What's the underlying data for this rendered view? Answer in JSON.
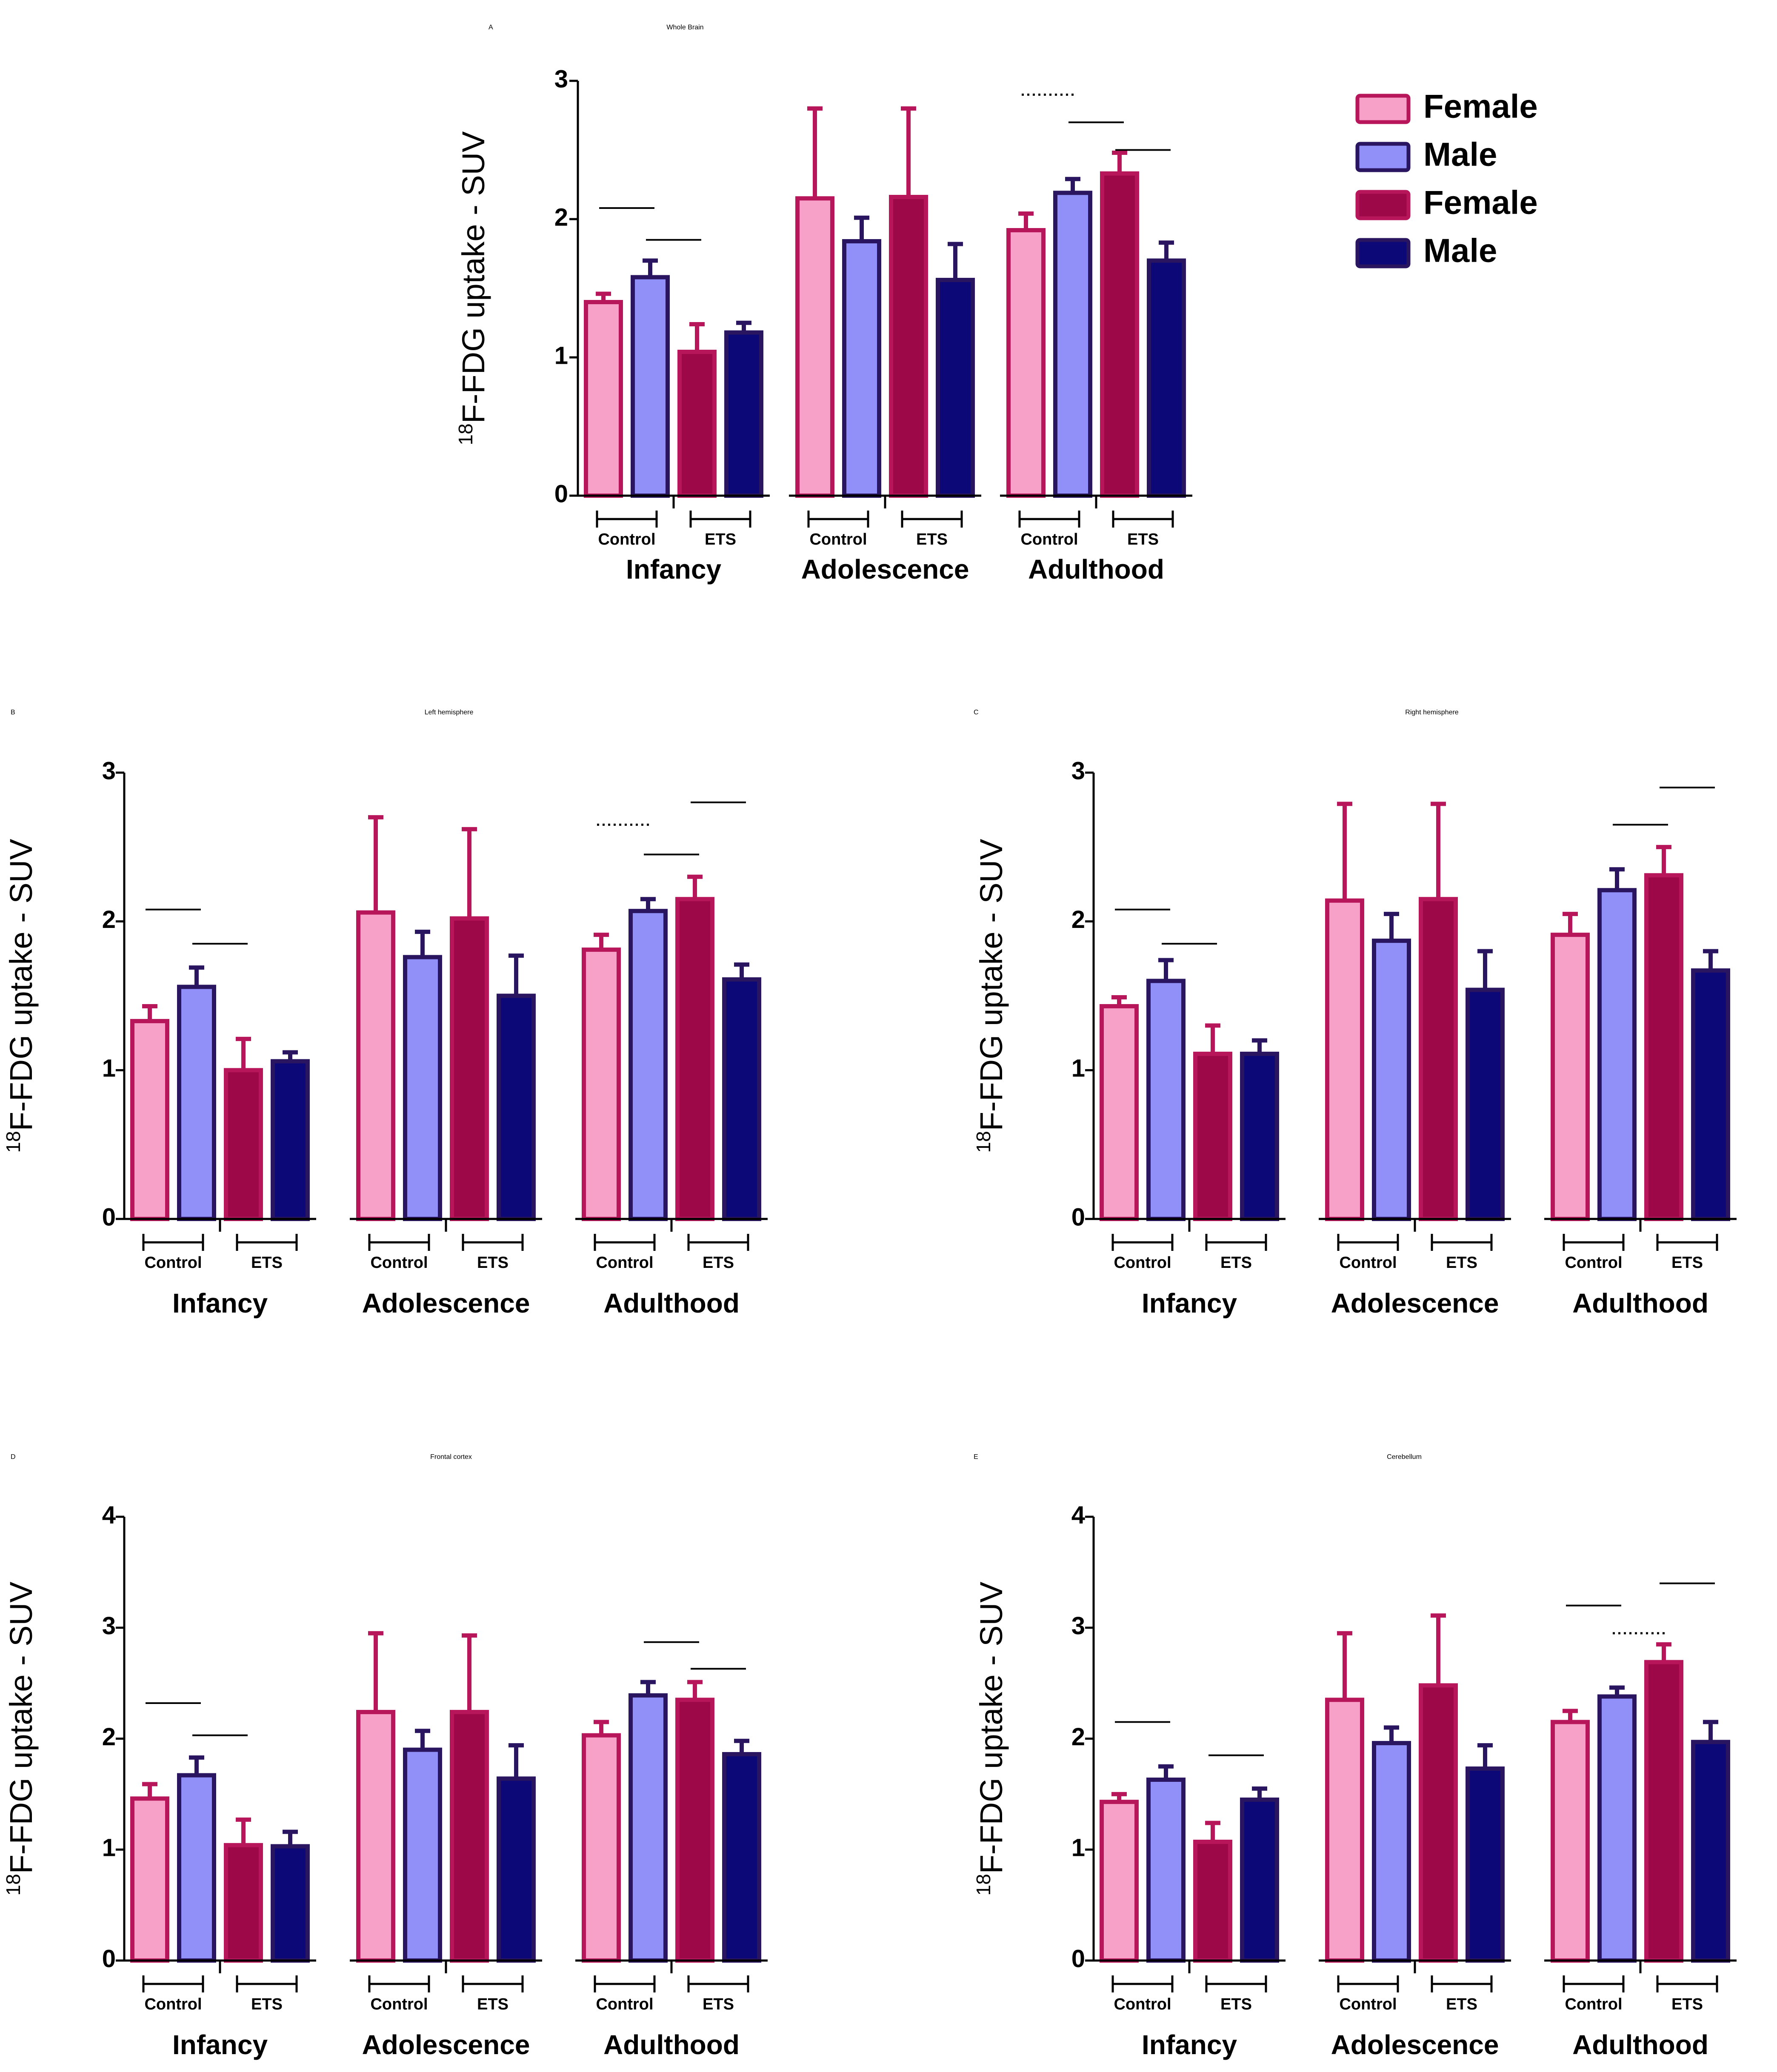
{
  "figure": {
    "legend": [
      {
        "label": "Female",
        "fill": "#f7a0c8",
        "stroke": "#b8165a"
      },
      {
        "label": "Male",
        "fill": "#9090f8",
        "stroke": "#2a1660"
      },
      {
        "label": "Female",
        "fill": "#9c0848",
        "stroke": "#b8165a"
      },
      {
        "label": "Male",
        "fill": "#0c0878",
        "stroke": "#2a1660"
      }
    ]
  },
  "chart_data": [
    {
      "type": "bar",
      "panel": "A",
      "title": "Whole Brain",
      "ylabel_sup": "18",
      "ylabel_main": "F-FDG uptake - SUV",
      "ylim": [
        0,
        3
      ],
      "yticks": [
        "0",
        "1",
        "2",
        "3"
      ],
      "groups": [
        "Infancy",
        "Adolescence",
        "Adulthood"
      ],
      "subgroups": [
        "Control",
        "ETS"
      ],
      "series": [
        {
          "name": "Female Control",
          "values": [
            1.4,
            2.15,
            1.92
          ],
          "errors": [
            0.06,
            0.65,
            0.12
          ]
        },
        {
          "name": "Male Control",
          "values": [
            1.58,
            1.84,
            2.19
          ],
          "errors": [
            0.12,
            0.17,
            0.1
          ]
        },
        {
          "name": "Female ETS",
          "values": [
            1.04,
            2.16,
            2.33
          ],
          "errors": [
            0.2,
            0.64,
            0.15
          ]
        },
        {
          "name": "Male ETS",
          "values": [
            1.18,
            1.56,
            1.7
          ],
          "errors": [
            0.07,
            0.26,
            0.13
          ]
        }
      ],
      "sig": [
        {
          "g": 0,
          "a": 0,
          "b": 1,
          "y": 2.08,
          "dotted": false
        },
        {
          "g": 0,
          "a": 1,
          "b": 2,
          "y": 1.85,
          "dotted": false
        },
        {
          "g": 2,
          "a": 0,
          "b": 1,
          "y": 2.9,
          "dotted": true
        },
        {
          "g": 2,
          "a": 1,
          "b": 2,
          "y": 2.7,
          "dotted": false
        },
        {
          "g": 2,
          "a": 2,
          "b": 3,
          "y": 2.5,
          "dotted": false
        }
      ]
    },
    {
      "type": "bar",
      "panel": "B",
      "title": "Left hemisphere",
      "ylabel_sup": "18",
      "ylabel_main": "F-FDG uptake - SUV",
      "ylim": [
        0,
        3
      ],
      "yticks": [
        "0",
        "1",
        "2",
        "3"
      ],
      "groups": [
        "Infancy",
        "Adolescence",
        "Adulthood"
      ],
      "subgroups": [
        "Control",
        "ETS"
      ],
      "series": [
        {
          "name": "Female Control",
          "values": [
            1.33,
            2.06,
            1.81
          ],
          "errors": [
            0.1,
            0.64,
            0.1
          ]
        },
        {
          "name": "Male Control",
          "values": [
            1.56,
            1.76,
            2.07
          ],
          "errors": [
            0.13,
            0.17,
            0.08
          ]
        },
        {
          "name": "Female ETS",
          "values": [
            1.0,
            2.02,
            2.15
          ],
          "errors": [
            0.21,
            0.6,
            0.15
          ]
        },
        {
          "name": "Male ETS",
          "values": [
            1.06,
            1.5,
            1.61
          ],
          "errors": [
            0.06,
            0.27,
            0.1
          ]
        }
      ],
      "sig": [
        {
          "g": 0,
          "a": 0,
          "b": 1,
          "y": 2.08,
          "dotted": false
        },
        {
          "g": 0,
          "a": 1,
          "b": 2,
          "y": 1.85,
          "dotted": false
        },
        {
          "g": 2,
          "a": 0,
          "b": 1,
          "y": 2.65,
          "dotted": true
        },
        {
          "g": 2,
          "a": 1,
          "b": 2,
          "y": 2.45,
          "dotted": false
        },
        {
          "g": 2,
          "a": 2,
          "b": 3,
          "y": 2.8,
          "dotted": false
        }
      ]
    },
    {
      "type": "bar",
      "panel": "C",
      "title": "Right hemisphere",
      "ylabel_sup": "18",
      "ylabel_main": "F-FDG uptake - SUV",
      "ylim": [
        0,
        3
      ],
      "yticks": [
        "0",
        "1",
        "2",
        "3"
      ],
      "groups": [
        "Infancy",
        "Adolescence",
        "Adulthood"
      ],
      "subgroups": [
        "Control",
        "ETS"
      ],
      "series": [
        {
          "name": "Female Control",
          "values": [
            1.43,
            2.14,
            1.91
          ],
          "errors": [
            0.06,
            0.65,
            0.14
          ]
        },
        {
          "name": "Male Control",
          "values": [
            1.6,
            1.87,
            2.21
          ],
          "errors": [
            0.14,
            0.18,
            0.14
          ]
        },
        {
          "name": "Female ETS",
          "values": [
            1.11,
            2.15,
            2.31
          ],
          "errors": [
            0.19,
            0.64,
            0.19
          ]
        },
        {
          "name": "Male ETS",
          "values": [
            1.11,
            1.54,
            1.67
          ],
          "errors": [
            0.09,
            0.26,
            0.13
          ]
        }
      ],
      "sig": [
        {
          "g": 0,
          "a": 0,
          "b": 1,
          "y": 2.08,
          "dotted": false
        },
        {
          "g": 0,
          "a": 1,
          "b": 2,
          "y": 1.85,
          "dotted": false
        },
        {
          "g": 2,
          "a": 1,
          "b": 2,
          "y": 2.65,
          "dotted": false
        },
        {
          "g": 2,
          "a": 2,
          "b": 3,
          "y": 2.9,
          "dotted": false
        }
      ]
    },
    {
      "type": "bar",
      "panel": "D",
      "title": "Frontal cortex",
      "ylabel_sup": "18",
      "ylabel_main": "F-FDG uptake - SUV",
      "ylim": [
        0,
        4
      ],
      "yticks": [
        "0",
        "1",
        "2",
        "3",
        "4"
      ],
      "groups": [
        "Infancy",
        "Adolescence",
        "Adulthood"
      ],
      "subgroups": [
        "Control",
        "ETS"
      ],
      "series": [
        {
          "name": "Female Control",
          "values": [
            1.46,
            2.24,
            2.03
          ],
          "errors": [
            0.13,
            0.71,
            0.12
          ]
        },
        {
          "name": "Male Control",
          "values": [
            1.67,
            1.9,
            2.39
          ],
          "errors": [
            0.16,
            0.17,
            0.12
          ]
        },
        {
          "name": "Female ETS",
          "values": [
            1.04,
            2.24,
            2.35
          ],
          "errors": [
            0.23,
            0.69,
            0.16
          ]
        },
        {
          "name": "Male ETS",
          "values": [
            1.03,
            1.64,
            1.86
          ],
          "errors": [
            0.13,
            0.3,
            0.12
          ]
        }
      ],
      "sig": [
        {
          "g": 0,
          "a": 0,
          "b": 1,
          "y": 2.32,
          "dotted": false
        },
        {
          "g": 0,
          "a": 1,
          "b": 2,
          "y": 2.03,
          "dotted": false
        },
        {
          "g": 2,
          "a": 1,
          "b": 2,
          "y": 2.87,
          "dotted": false
        },
        {
          "g": 2,
          "a": 2,
          "b": 3,
          "y": 2.63,
          "dotted": false
        }
      ]
    },
    {
      "type": "bar",
      "panel": "E",
      "title": "Cerebellum",
      "ylabel_sup": "18",
      "ylabel_main": "F-FDG uptake - SUV",
      "ylim": [
        0,
        4
      ],
      "yticks": [
        "0",
        "1",
        "2",
        "3",
        "4"
      ],
      "groups": [
        "Infancy",
        "Adolescence",
        "Adulthood"
      ],
      "subgroups": [
        "Control",
        "ETS"
      ],
      "series": [
        {
          "name": "Female Control",
          "values": [
            1.43,
            2.35,
            2.15
          ],
          "errors": [
            0.07,
            0.6,
            0.1
          ]
        },
        {
          "name": "Male Control",
          "values": [
            1.63,
            1.96,
            2.38
          ],
          "errors": [
            0.12,
            0.14,
            0.08
          ]
        },
        {
          "name": "Female ETS",
          "values": [
            1.07,
            2.48,
            2.69
          ],
          "errors": [
            0.17,
            0.63,
            0.16
          ]
        },
        {
          "name": "Male ETS",
          "values": [
            1.45,
            1.73,
            1.97
          ],
          "errors": [
            0.1,
            0.21,
            0.18
          ]
        }
      ],
      "sig": [
        {
          "g": 0,
          "a": 0,
          "b": 1,
          "y": 2.15,
          "dotted": false
        },
        {
          "g": 0,
          "a": 2,
          "b": 3,
          "y": 1.85,
          "dotted": false
        },
        {
          "g": 2,
          "a": 0,
          "b": 1,
          "y": 3.2,
          "dotted": false
        },
        {
          "g": 2,
          "a": 1,
          "b": 2,
          "y": 2.95,
          "dotted": true
        },
        {
          "g": 2,
          "a": 2,
          "b": 3,
          "y": 3.4,
          "dotted": false
        }
      ]
    }
  ]
}
